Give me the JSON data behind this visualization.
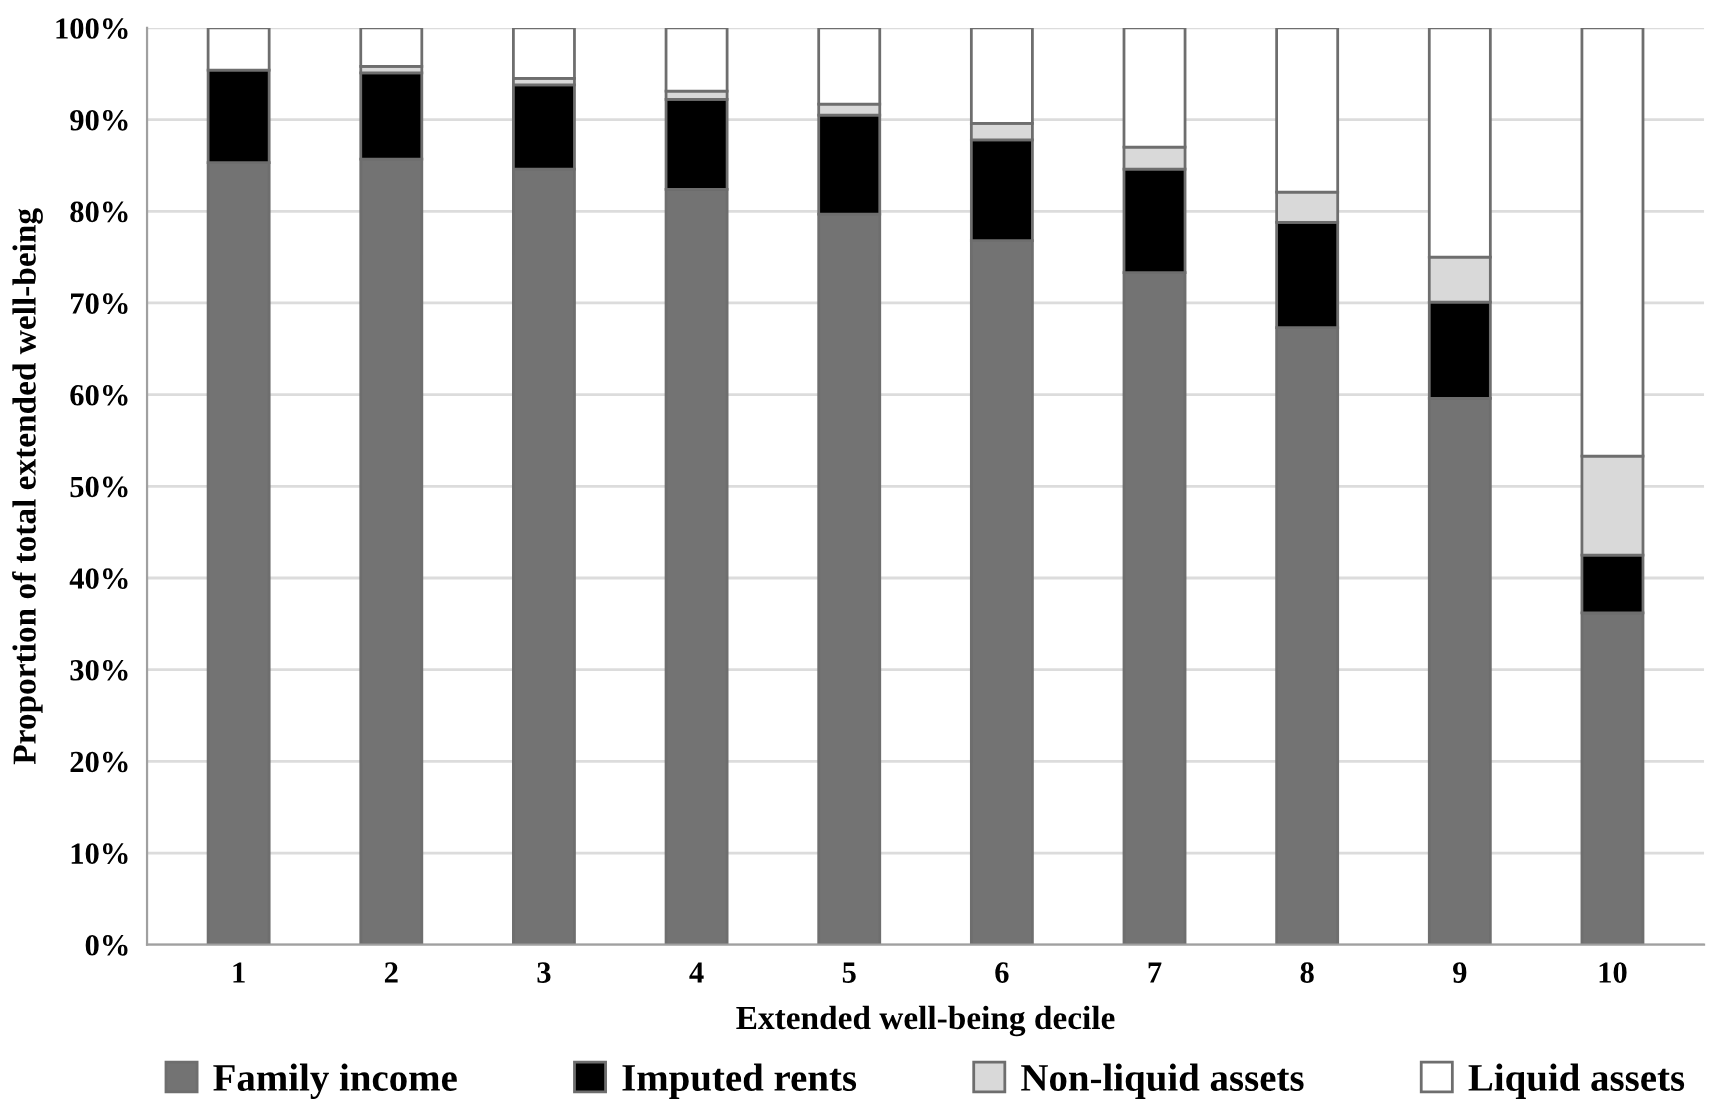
{
  "chart_data": {
    "type": "bar",
    "stacked": true,
    "xlabel": "Extended well-being decile",
    "ylabel": "Proportion of total extended well-being",
    "categories": [
      "1",
      "2",
      "3",
      "4",
      "5",
      "6",
      "7",
      "8",
      "9",
      "10"
    ],
    "series": [
      {
        "name": "Family income",
        "color": "#737373",
        "values": [
          85.3,
          85.7,
          84.6,
          82.4,
          79.7,
          76.8,
          73.3,
          67.3,
          59.6,
          36.2
        ]
      },
      {
        "name": "Imputed rents",
        "color": "#000000",
        "values": [
          10.1,
          9.4,
          9.2,
          9.8,
          10.8,
          11.0,
          11.3,
          11.5,
          10.5,
          6.3
        ]
      },
      {
        "name": "Non-liquid assets",
        "color": "#d9d9d9",
        "values": [
          null,
          0.7,
          0.7,
          0.9,
          1.2,
          1.8,
          2.4,
          3.3,
          4.9,
          10.8
        ]
      },
      {
        "name": "Liquid assets",
        "color": "#ffffff",
        "values": [
          4.6,
          4.2,
          5.5,
          6.9,
          8.3,
          10.4,
          13.0,
          17.9,
          25.0,
          46.7
        ]
      }
    ],
    "ylim": [
      0,
      100
    ],
    "yticks": [
      {
        "value": 0,
        "label": "0%"
      },
      {
        "value": 10,
        "label": "10%"
      },
      {
        "value": 20,
        "label": "20%"
      },
      {
        "value": 30,
        "label": "30%"
      },
      {
        "value": 40,
        "label": "40%"
      },
      {
        "value": 50,
        "label": "50%"
      },
      {
        "value": 60,
        "label": "60%"
      },
      {
        "value": 70,
        "label": "70%"
      },
      {
        "value": 80,
        "label": "80%"
      },
      {
        "value": 90,
        "label": "90%"
      },
      {
        "value": 100,
        "label": "100%"
      }
    ],
    "grid": "y",
    "legend": "bottom"
  }
}
